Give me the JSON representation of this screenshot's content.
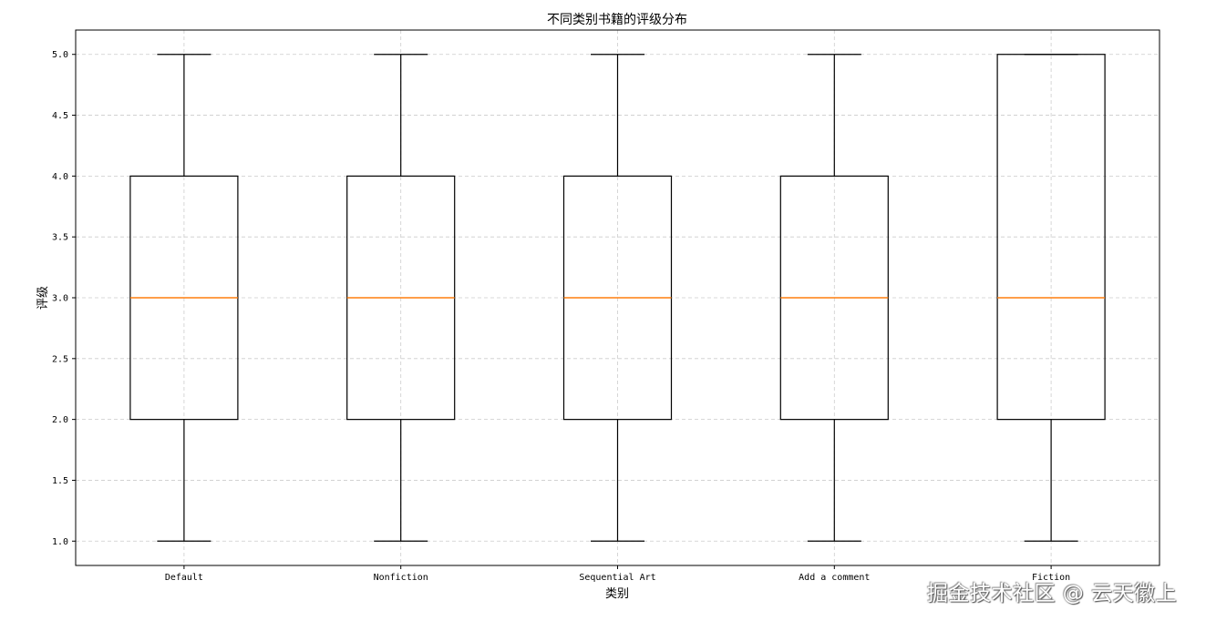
{
  "chart_data": {
    "type": "boxplot",
    "title": "不同类别书籍的评级分布",
    "xlabel": "类别",
    "ylabel": "评级",
    "categories": [
      "Default",
      "Nonfiction",
      "Sequential Art",
      "Add a comment",
      "Fiction"
    ],
    "boxes": [
      {
        "whisker_low": 1.0,
        "q1": 2.0,
        "median": 3.0,
        "q3": 4.0,
        "whisker_high": 5.0
      },
      {
        "whisker_low": 1.0,
        "q1": 2.0,
        "median": 3.0,
        "q3": 4.0,
        "whisker_high": 5.0
      },
      {
        "whisker_low": 1.0,
        "q1": 2.0,
        "median": 3.0,
        "q3": 4.0,
        "whisker_high": 5.0
      },
      {
        "whisker_low": 1.0,
        "q1": 2.0,
        "median": 3.0,
        "q3": 4.0,
        "whisker_high": 5.0
      },
      {
        "whisker_low": 1.0,
        "q1": 2.0,
        "median": 3.0,
        "q3": 5.0,
        "whisker_high": 5.0
      }
    ],
    "yticks": [
      "1.0",
      "1.5",
      "2.0",
      "2.5",
      "3.0",
      "3.5",
      "4.0",
      "4.5",
      "5.0"
    ],
    "ylim": [
      0.8,
      5.2
    ],
    "grid": true,
    "grid_style": "dashed",
    "colors": {
      "box": "#000000",
      "median": "#ff7f0e",
      "grid": "#cccccc"
    }
  },
  "watermark": "掘金技术社区 @ 云天徽上"
}
